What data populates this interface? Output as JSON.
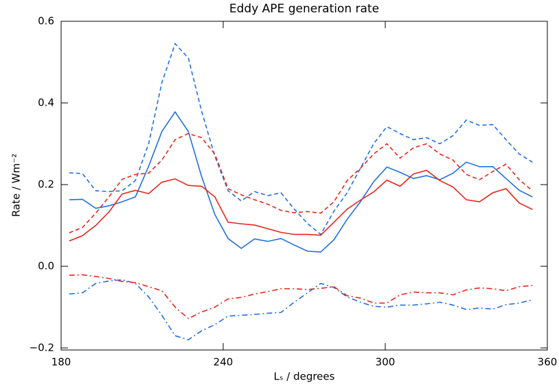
{
  "chart_data": {
    "type": "line",
    "title": "Eddy APE generation rate",
    "x_label": "Lₛ / degrees",
    "y_label": "Rate / Wm⁻²",
    "x": [
      183,
      187.9,
      192.8,
      197.7,
      202.6,
      207.5,
      212.4,
      217.3,
      222.2,
      227.1,
      232,
      236.9,
      241.8,
      246.7,
      251.6,
      256.5,
      261.4,
      266.3,
      271.2,
      276.1,
      281,
      285.9,
      290.8,
      295.7,
      300.6,
      305.5,
      310.4,
      315.3,
      320.2,
      325.1,
      330,
      334.9,
      339.8,
      344.7,
      349.6,
      354.5
    ],
    "series": [
      {
        "color": "#1f6fe0",
        "dash": "solid",
        "values": [
          0.163,
          0.164,
          0.142,
          0.148,
          0.158,
          0.17,
          0.245,
          0.33,
          0.378,
          0.33,
          0.22,
          0.127,
          0.068,
          0.044,
          0.067,
          0.061,
          0.068,
          0.052,
          0.037,
          0.035,
          0.065,
          0.115,
          0.158,
          0.207,
          0.243,
          0.23,
          0.215,
          0.222,
          0.212,
          0.228,
          0.255,
          0.244,
          0.244,
          0.215,
          0.186,
          0.17
        ]
      },
      {
        "color": "#1f6fe0",
        "dash": "dashed",
        "values": [
          0.229,
          0.227,
          0.185,
          0.183,
          0.185,
          0.21,
          0.3,
          0.45,
          0.545,
          0.51,
          0.38,
          0.27,
          0.185,
          0.16,
          0.183,
          0.173,
          0.18,
          0.14,
          0.105,
          0.078,
          0.135,
          0.18,
          0.24,
          0.3,
          0.342,
          0.325,
          0.31,
          0.315,
          0.3,
          0.32,
          0.358,
          0.345,
          0.347,
          0.31,
          0.275,
          0.255
        ]
      },
      {
        "color": "#e8241a",
        "dash": "solid",
        "values": [
          0.062,
          0.075,
          0.1,
          0.133,
          0.177,
          0.186,
          0.178,
          0.206,
          0.214,
          0.198,
          0.196,
          0.17,
          0.108,
          0.104,
          0.101,
          0.092,
          0.083,
          0.078,
          0.078,
          0.076,
          0.108,
          0.14,
          0.162,
          0.182,
          0.211,
          0.196,
          0.226,
          0.235,
          0.21,
          0.194,
          0.163,
          0.158,
          0.18,
          0.19,
          0.155,
          0.139
        ]
      },
      {
        "color": "#e8241a",
        "dash": "dashed",
        "values": [
          0.082,
          0.095,
          0.13,
          0.17,
          0.213,
          0.225,
          0.228,
          0.26,
          0.31,
          0.325,
          0.315,
          0.275,
          0.19,
          0.175,
          0.163,
          0.152,
          0.137,
          0.131,
          0.134,
          0.13,
          0.158,
          0.21,
          0.24,
          0.275,
          0.3,
          0.265,
          0.29,
          0.3,
          0.275,
          0.26,
          0.225,
          0.212,
          0.232,
          0.25,
          0.212,
          0.185
        ]
      },
      {
        "color": "#1f6fe0",
        "dash": "dashdot",
        "values": [
          -0.068,
          -0.065,
          -0.042,
          -0.036,
          -0.033,
          -0.042,
          -0.075,
          -0.12,
          -0.17,
          -0.18,
          -0.158,
          -0.143,
          -0.122,
          -0.12,
          -0.118,
          -0.115,
          -0.113,
          -0.088,
          -0.065,
          -0.042,
          -0.052,
          -0.075,
          -0.088,
          -0.098,
          -0.1,
          -0.095,
          -0.095,
          -0.092,
          -0.088,
          -0.095,
          -0.106,
          -0.102,
          -0.105,
          -0.094,
          -0.09,
          -0.082
        ]
      },
      {
        "color": "#e8241a",
        "dash": "dashdot",
        "values": [
          -0.022,
          -0.021,
          -0.025,
          -0.03,
          -0.037,
          -0.04,
          -0.05,
          -0.06,
          -0.1,
          -0.128,
          -0.112,
          -0.1,
          -0.08,
          -0.076,
          -0.068,
          -0.062,
          -0.055,
          -0.055,
          -0.057,
          -0.054,
          -0.05,
          -0.072,
          -0.078,
          -0.09,
          -0.09,
          -0.07,
          -0.063,
          -0.065,
          -0.065,
          -0.07,
          -0.058,
          -0.053,
          -0.055,
          -0.06,
          -0.05,
          -0.047
        ]
      }
    ],
    "xlim": [
      180,
      360
    ],
    "xticks": [
      180,
      240,
      300,
      360
    ],
    "ylim": [
      -0.205,
      0.6
    ],
    "yticks": [
      {
        "value": -0.2,
        "label": "−0.2"
      },
      {
        "value": 0,
        "label": "0.0"
      },
      0.2,
      0.4,
      0.6
    ]
  }
}
